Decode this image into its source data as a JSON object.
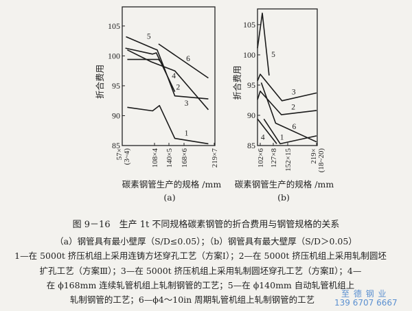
{
  "chart_data": [
    {
      "id": "a",
      "type": "line",
      "panel_label": "(a)",
      "xlabel": "碳素钢管生产的规格 /mm",
      "ylabel": "折合费用",
      "ylim": [
        85,
        108.2
      ],
      "yticks": [
        85,
        90,
        95,
        100,
        105
      ],
      "xlim": [
        57,
        219
      ],
      "xticks": [
        {
          "x": 57,
          "label": "57×\n(3~4)"
        },
        {
          "x": 108,
          "label": "108×4"
        },
        {
          "x": 140,
          "label": "140×5"
        },
        {
          "x": 168,
          "label": "168×6"
        },
        {
          "x": 219,
          "label": "219×7"
        }
      ],
      "series": [
        {
          "name": "1",
          "points": [
            [
              65,
              91.4
            ],
            [
              105,
              90.8
            ],
            [
              119,
              91.7
            ],
            [
              151,
              86.2
            ],
            [
              209,
              85.3
            ]
          ],
          "label_at": [
            172,
            87.1
          ]
        },
        {
          "name": "2",
          "points": [
            [
              65,
              101.0
            ],
            [
              103,
              99.0
            ],
            [
              151,
              97.5
            ],
            [
              209,
              91.0
            ]
          ],
          "label_at": [
            157,
            94.8
          ]
        },
        {
          "name": "3",
          "points": [
            [
              65,
              99.4
            ],
            [
              117,
              99.4
            ],
            [
              127,
              98.5
            ],
            [
              151,
              93.3
            ],
            [
              209,
              92.8
            ]
          ],
          "label_at": [
            172,
            92.1
          ]
        },
        {
          "name": "4",
          "points": [
            [
              62,
              101.3
            ],
            [
              105,
              100.3
            ],
            [
              112,
              100.5
            ],
            [
              151,
              94.0
            ]
          ],
          "label_at": [
            149,
            96.7
          ]
        },
        {
          "name": "5",
          "points": [
            [
              63,
              103.2
            ],
            [
              107,
              101.2
            ],
            [
              114,
              101.0
            ],
            [
              127,
              98.5
            ]
          ],
          "label_at": [
            99,
            103.3
          ]
        },
        {
          "name": "6",
          "points": [
            [
              117,
              102.0
            ],
            [
              209,
              96.3
            ]
          ],
          "label_at": [
            175,
            99.6
          ]
        }
      ]
    },
    {
      "id": "b",
      "type": "line",
      "panel_label": "(b)",
      "xlabel": "碳素钢管生产的规格 /mm",
      "ylabel": "折合费用",
      "ylim": [
        85,
        107.6
      ],
      "yticks": [
        85,
        90,
        95,
        100,
        105
      ],
      "xlim": [
        100,
        219
      ],
      "xticks": [
        {
          "x": 102,
          "label": "102×6"
        },
        {
          "x": 127,
          "label": "127×8"
        },
        {
          "x": 152,
          "label": "152×15"
        },
        {
          "x": 219,
          "label": "219×\n(18~20)"
        }
      ],
      "series": [
        {
          "name": "1",
          "points": [
            [
              109,
              89.4
            ],
            [
              139,
              85.3
            ],
            [
              219,
              86.6
            ]
          ],
          "label_at": [
            142,
            86.4
          ]
        },
        {
          "name": "2",
          "points": [
            [
              100,
              92.6
            ],
            [
              102,
              94.0
            ],
            [
              141,
              90.1
            ],
            [
              219,
              90.8
            ]
          ],
          "label_at": [
            165,
            91.4
          ]
        },
        {
          "name": "3",
          "points": [
            [
              100,
              95.7
            ],
            [
              102,
              96.8
            ],
            [
              142,
              92.4
            ],
            [
              219,
              93.7
            ]
          ],
          "label_at": [
            166,
            93.9
          ]
        },
        {
          "name": "4",
          "points": [
            [
              100,
              89.4
            ],
            [
              133,
              85.3
            ]
          ],
          "label_at": [
            107,
            86.4
          ]
        },
        {
          "name": "5",
          "points": [
            [
              100,
              101.1
            ],
            [
              106,
              106.9
            ],
            [
              119,
              96.6
            ]
          ],
          "label_at": [
            127,
            100.1
          ]
        },
        {
          "name": "6",
          "points": [
            [
              104,
              95.4
            ],
            [
              131,
              88.7
            ],
            [
              219,
              85.6
            ]
          ],
          "label_at": [
            167,
            88.2
          ]
        }
      ]
    }
  ],
  "caption": {
    "title": "图 9－16　生产 1t 不同规格碳素钢管的折合费用与钢管规格的关系",
    "subtitle": "（a）钢管具有最小壁厚（S/D≤0.05）；（b）钢管具有最大壁厚（S/D＞0.05）",
    "line1": "1—在 5000t 挤压机组上采用连铸方坯穿孔工艺（方案Ⅰ）；2—在 5000t 挤压机组上采用轧制圆坯",
    "line2": "扩孔工艺（方案Ⅲ）；3—在 5000t 挤压机组上采用轧制圆坯穿孔工艺（方案Ⅱ）；4—",
    "line3": "在 ϕ168mm 连续轧管机组上轧制钢管的工艺；5—在 ϕ140mm 自动轧管机组上",
    "line4": "轧制钢管的工艺；6—ϕ4～10in 周期轧管机组上轧制钢管的工艺"
  },
  "watermark": {
    "name": "至 德 钢 业",
    "phone": "139 6707 6667",
    "color": "#5a8fd0"
  }
}
